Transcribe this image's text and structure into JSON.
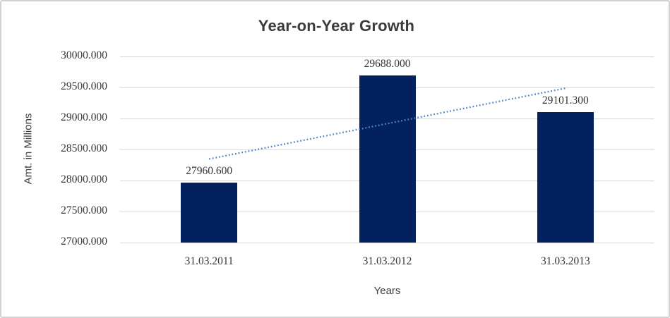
{
  "chart_data": {
    "type": "bar",
    "title": "Year-on-Year Growth",
    "xlabel": "Years",
    "ylabel": "Amt. in Millions",
    "categories": [
      "31.03.2011",
      "31.03.2012",
      "31.03.2013"
    ],
    "values": [
      27960.6,
      29688.0,
      29101.3
    ],
    "value_labels": [
      "27960.600",
      "29688.000",
      "29101.300"
    ],
    "ylim": [
      27000,
      30000
    ],
    "ytick_step": 500,
    "ytick_labels": [
      "30000.000",
      "29500.000",
      "29000.000",
      "28500.000",
      "28000.000",
      "27500.000",
      "27000.000"
    ],
    "grid": "horizontal",
    "legend": "none",
    "trendline": {
      "type": "linear",
      "style": "dotted",
      "start_value": 28346.3,
      "end_value": 29487.0
    },
    "colors": {
      "bar": "#03215f",
      "trendline": "#4f86c6",
      "gridline": "#d9d9d9",
      "title_text": "#3b3b3b",
      "tick_text": "#383838",
      "axis_title_text": "#404040"
    }
  }
}
